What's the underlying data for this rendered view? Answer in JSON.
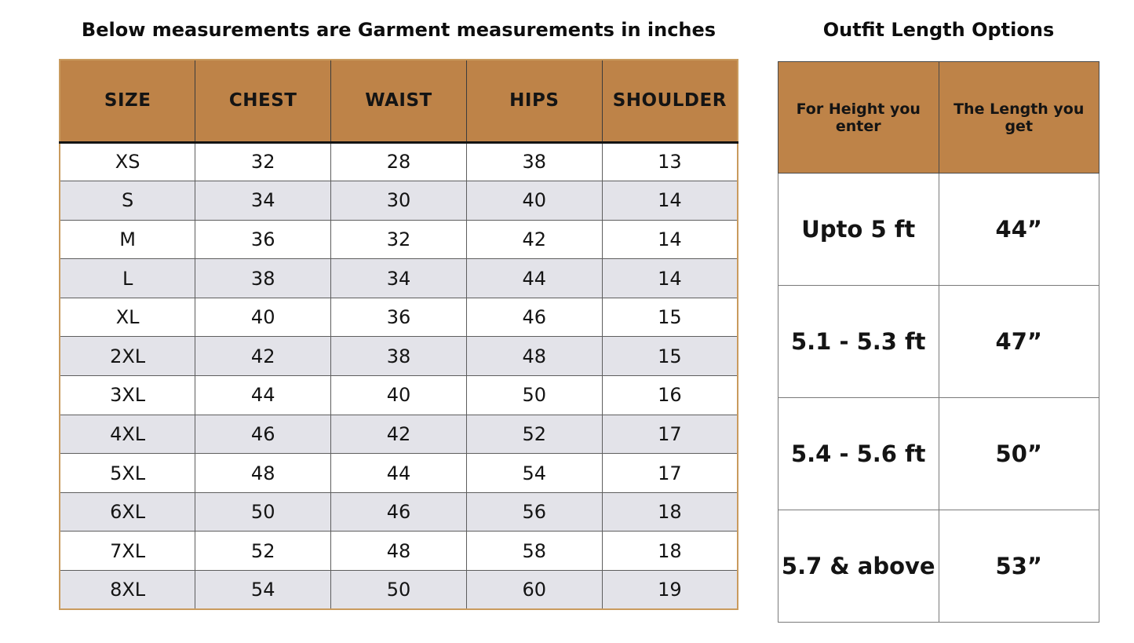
{
  "chart_data": [
    {
      "type": "table",
      "title": "Below measurements are Garment measurements in inches",
      "columns": [
        "SIZE",
        "CHEST",
        "WAIST",
        "HIPS",
        "SHOULDER"
      ],
      "rows": [
        [
          "XS",
          "32",
          "28",
          "38",
          "13"
        ],
        [
          "S",
          "34",
          "30",
          "40",
          "14"
        ],
        [
          "M",
          "36",
          "32",
          "42",
          "14"
        ],
        [
          "L",
          "38",
          "34",
          "44",
          "14"
        ],
        [
          "XL",
          "40",
          "36",
          "46",
          "15"
        ],
        [
          "2XL",
          "42",
          "38",
          "48",
          "15"
        ],
        [
          "3XL",
          "44",
          "40",
          "50",
          "16"
        ],
        [
          "4XL",
          "46",
          "42",
          "52",
          "17"
        ],
        [
          "5XL",
          "48",
          "44",
          "54",
          "17"
        ],
        [
          "6XL",
          "50",
          "46",
          "56",
          "18"
        ],
        [
          "7XL",
          "52",
          "48",
          "58",
          "18"
        ],
        [
          "8XL",
          "54",
          "50",
          "60",
          "19"
        ]
      ],
      "units": "inches"
    },
    {
      "type": "table",
      "title": "Outfit Length Options",
      "columns": [
        "For Height you enter",
        "The Length you get"
      ],
      "rows": [
        [
          "Upto 5 ft",
          "44”"
        ],
        [
          "5.1 - 5.3 ft",
          "47”"
        ],
        [
          "5.4 - 5.6 ft",
          "50”"
        ],
        [
          "5.7 & above",
          "53”"
        ]
      ]
    }
  ],
  "colors": {
    "header_bg": "#be8348",
    "alt_row_bg": "#e3e3e9",
    "size_table_outer_border": "#c99b5e",
    "grid_line": "#5e5e5e",
    "header_underline": "#141414",
    "text": "#141414",
    "page_bg": "#ffffff"
  }
}
